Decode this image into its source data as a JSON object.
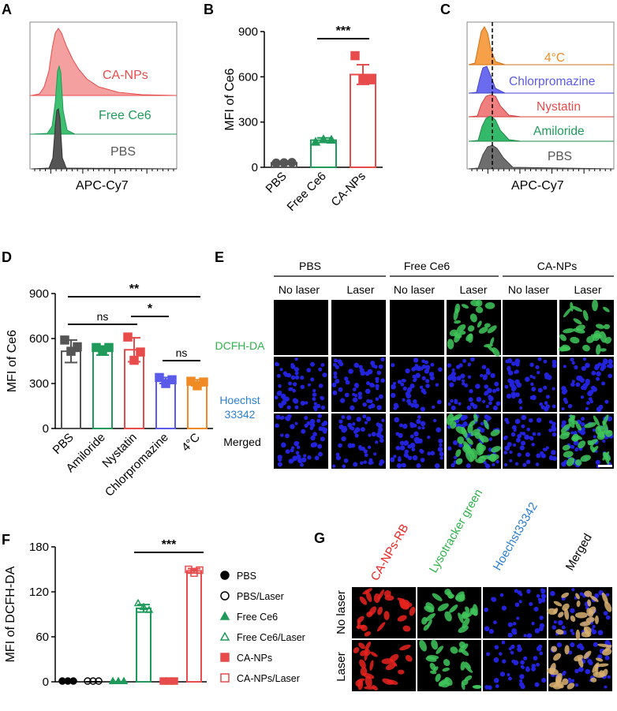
{
  "panel_letters": [
    "A",
    "B",
    "C",
    "D",
    "E",
    "F",
    "G"
  ],
  "colors": {
    "gray": "#555555",
    "green": "#1f9a5a",
    "red": "#e84b4b",
    "blue": "#5b5bea",
    "orange": "#f08a24",
    "cell_green": "#3fc65a",
    "nucleus_blue": "#2323dc"
  },
  "panel_a": {
    "xlabel": "APC-Cy7",
    "labels": [
      "CA-NPs",
      "Free Ce6",
      "PBS"
    ]
  },
  "panel_c": {
    "xlabel": "APC-Cy7",
    "labels": [
      "4°C",
      "Chlorpromazine",
      "Nystatin",
      "Amiloride",
      "PBS"
    ]
  },
  "panel_e": {
    "groups": [
      "PBS",
      "Free Ce6",
      "CA-NPs"
    ],
    "conditions": [
      "No laser",
      "Laser",
      "No laser",
      "Laser",
      "No laser",
      "Laser"
    ],
    "rows": [
      "DCFH-DA",
      "Hoechst",
      "33342",
      "Merged"
    ]
  },
  "panel_g": {
    "columns": [
      "CA-NPs-RB",
      "Lysotracker green",
      "Hoechst33342",
      "Merged"
    ],
    "rows": [
      "No laser",
      "Laser"
    ]
  },
  "chart_data": [
    {
      "panel": "B",
      "type": "bar",
      "ylabel": "MFI of Ce6",
      "ylim": [
        0,
        900
      ],
      "yticks": [
        "0",
        "300",
        "600",
        "900"
      ],
      "categories": [
        "PBS",
        "Free Ce6",
        "CA-NPs"
      ],
      "values": [
        30,
        180,
        615
      ],
      "errors": [
        5,
        15,
        65
      ],
      "points": [
        [
          28,
          30,
          32
        ],
        [
          168,
          185,
          182
        ],
        [
          740,
          585,
          580
        ]
      ],
      "markers": [
        "circle",
        "triangle",
        "square"
      ],
      "significance": [
        {
          "from": 1,
          "to": 2,
          "label": "***"
        }
      ]
    },
    {
      "panel": "D",
      "type": "bar",
      "ylabel": "MFI of Ce6",
      "ylim": [
        0,
        900
      ],
      "yticks": [
        "0",
        "300",
        "600",
        "900"
      ],
      "categories": [
        "PBS",
        "Amiloride",
        "Nystatin",
        "Chlorpromazine",
        "4°C"
      ],
      "values": [
        515,
        520,
        525,
        320,
        305
      ],
      "errors": [
        75,
        30,
        80,
        20,
        20
      ],
      "points": [
        [
          590,
          515,
          545
        ],
        [
          540,
          515,
          540
        ],
        [
          610,
          455,
          510
        ],
        [
          340,
          300,
          325
        ],
        [
          315,
          285,
          310
        ]
      ],
      "markers": [
        "square",
        "square",
        "square",
        "square",
        "square"
      ],
      "significance": [
        {
          "from": 0,
          "to": 4,
          "label": "**"
        },
        {
          "from": 0,
          "to": 2,
          "label": "ns"
        },
        {
          "from": 2,
          "to": 3,
          "label": "*"
        },
        {
          "from": 3,
          "to": 4,
          "label": "ns"
        }
      ]
    },
    {
      "panel": "F",
      "type": "bar",
      "ylabel": "MFI of DCFH-DA",
      "ylim": [
        0,
        180
      ],
      "yticks": [
        "0",
        "60",
        "120",
        "180"
      ],
      "categories": [
        "PBS",
        "PBS/Laser",
        "Free Ce6",
        "Free Ce6/Laser",
        "CA-NPs",
        "CA-NPs/Laser"
      ],
      "values": [
        1,
        1,
        1,
        98,
        1,
        148
      ],
      "errors": [
        0,
        0,
        0,
        5,
        0,
        3
      ],
      "points": [
        [
          1,
          1,
          1
        ],
        [
          1,
          1,
          1
        ],
        [
          1,
          1,
          1
        ],
        [
          105,
          100,
          96
        ],
        [
          1,
          1,
          1
        ],
        [
          150,
          145,
          149
        ]
      ],
      "markers": [
        "circle-filled",
        "circle-open",
        "triangle-filled",
        "triangle-open",
        "square-filled",
        "square-open"
      ],
      "legend": [
        "PBS",
        "PBS/Laser",
        "Free Ce6",
        "Free Ce6/Laser",
        "CA-NPs",
        "CA-NPs/Laser"
      ],
      "significance": [
        {
          "from": 3,
          "to": 5,
          "label": "***"
        }
      ]
    }
  ]
}
